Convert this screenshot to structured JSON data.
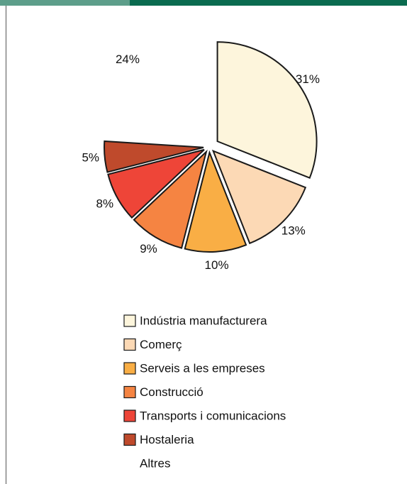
{
  "chart_data": {
    "type": "pie",
    "categories": [
      "Indústria manufacturera",
      "Comerç",
      "Serveis a les empreses",
      "Construcció",
      "Transports i comunicacions",
      "Hostaleria",
      "Altres"
    ],
    "values": [
      31,
      13,
      10,
      9,
      8,
      5,
      24
    ],
    "value_labels": [
      "31%",
      "13%",
      "10%",
      "9%",
      "8%",
      "5%",
      "24%"
    ],
    "colors": [
      "#fdf5dc",
      "#fcd9b5",
      "#f9ae45",
      "#f58442",
      "#ee4538",
      "#bf4a2c",
      null
    ],
    "legend": "bottom"
  }
}
